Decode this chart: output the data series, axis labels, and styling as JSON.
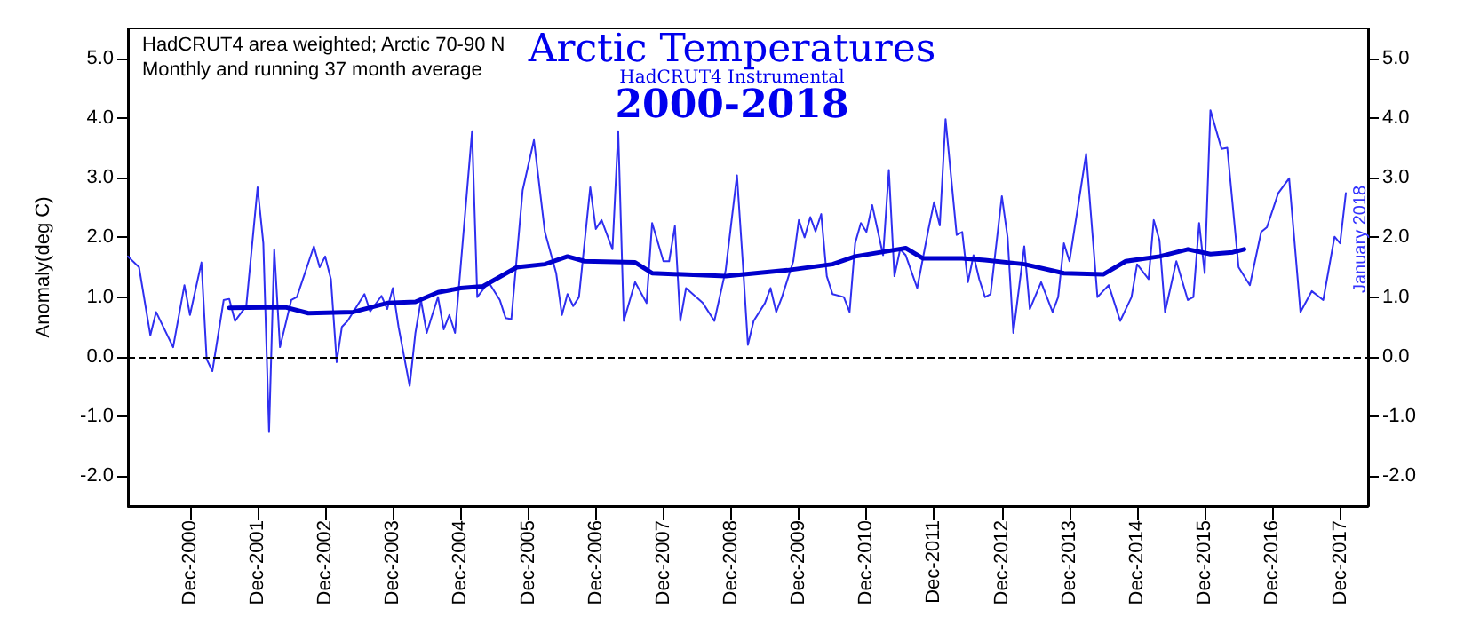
{
  "chart_data": {
    "type": "line",
    "title": "Arctic Temperatures",
    "subtitle": "HadCRUT4 Instrumental",
    "ylabel": "Anomaly(deg C)",
    "annotations": [
      "2000-2018",
      "HadCRUT4 area weighted; Arctic 70-90 N",
      "Monthly and running 37 month average",
      "January 2018"
    ],
    "series": [
      {
        "color": "#2f2ff0",
        "x": [
          "2000-01",
          "2000-03",
          "2000-05",
          "2000-06",
          "2000-09",
          "2000-11",
          "2000-12",
          "2001-02",
          "2001-03",
          "2001-04",
          "2001-06",
          "2001-07",
          "2001-08",
          "2001-10",
          "2001-12",
          "2002-01",
          "2002-02",
          "2002-03",
          "2002-04",
          "2002-06",
          "2002-07",
          "2002-10",
          "2002-11",
          "2002-12",
          "2003-01",
          "2003-02",
          "2003-03",
          "2003-04",
          "2003-07",
          "2003-08",
          "2003-10",
          "2003-11",
          "2003-12",
          "2004-01",
          "2004-03",
          "2004-04",
          "2004-05",
          "2004-06",
          "2004-07",
          "2004-08",
          "2004-09",
          "2004-10",
          "2004-11",
          "2005-02",
          "2005-03",
          "2005-05",
          "2005-07",
          "2005-08",
          "2005-09",
          "2005-11",
          "2006-01",
          "2006-03",
          "2006-05",
          "2006-06",
          "2006-07",
          "2006-08",
          "2006-09",
          "2006-11",
          "2006-12",
          "2007-01",
          "2007-03",
          "2007-04",
          "2007-05",
          "2007-07",
          "2007-09",
          "2007-10",
          "2007-12",
          "2008-01",
          "2008-02",
          "2008-03",
          "2008-04",
          "2008-07",
          "2008-09",
          "2008-11",
          "2009-01",
          "2009-02",
          "2009-03",
          "2009-04",
          "2009-06",
          "2009-07",
          "2009-08",
          "2009-09",
          "2009-11",
          "2009-12",
          "2010-01",
          "2010-02",
          "2010-03",
          "2010-04",
          "2010-05",
          "2010-06",
          "2010-08",
          "2010-09",
          "2010-10",
          "2010-11",
          "2010-12",
          "2011-01",
          "2011-03",
          "2011-04",
          "2011-05",
          "2011-06",
          "2011-07",
          "2011-09",
          "2011-11",
          "2011-12",
          "2012-01",
          "2012-02",
          "2012-04",
          "2012-05",
          "2012-06",
          "2012-07",
          "2012-08",
          "2012-09",
          "2012-10",
          "2012-12",
          "2013-01",
          "2013-02",
          "2013-04",
          "2013-05",
          "2013-07",
          "2013-09",
          "2013-10",
          "2013-11",
          "2013-12",
          "2014-03",
          "2014-05",
          "2014-07",
          "2014-09",
          "2014-11",
          "2014-12",
          "2015-02",
          "2015-03",
          "2015-04",
          "2015-05",
          "2015-07",
          "2015-09",
          "2015-10",
          "2015-11",
          "2015-12",
          "2016-01",
          "2016-03",
          "2016-04",
          "2016-06",
          "2016-07",
          "2016-08",
          "2016-10",
          "2016-11",
          "2017-01",
          "2017-03",
          "2017-05",
          "2017-07",
          "2017-09",
          "2017-11",
          "2017-12",
          "2018-01"
        ],
        "values": [
          1.68,
          1.5,
          0.36,
          0.75,
          0.16,
          1.2,
          0.7,
          1.58,
          -0.04,
          -0.24,
          0.95,
          0.97,
          0.6,
          0.85,
          2.84,
          1.9,
          -1.26,
          1.8,
          0.16,
          0.95,
          1.0,
          1.85,
          1.5,
          1.68,
          1.3,
          -0.09,
          0.5,
          0.6,
          1.05,
          0.76,
          1.02,
          0.8,
          1.15,
          0.5,
          -0.49,
          0.4,
          0.95,
          0.4,
          0.7,
          1.0,
          0.46,
          0.7,
          0.4,
          3.78,
          1.0,
          1.25,
          0.95,
          0.65,
          0.63,
          2.79,
          3.63,
          2.09,
          1.4,
          0.7,
          1.05,
          0.85,
          1.0,
          2.84,
          2.14,
          2.29,
          1.8,
          3.78,
          0.6,
          1.25,
          0.9,
          2.24,
          1.6,
          1.6,
          2.19,
          0.6,
          1.15,
          0.9,
          0.6,
          1.45,
          3.04,
          1.6,
          0.2,
          0.6,
          0.9,
          1.15,
          0.75,
          1.0,
          1.6,
          2.29,
          2.0,
          2.34,
          2.1,
          2.39,
          1.35,
          1.05,
          1.0,
          0.75,
          1.9,
          2.24,
          2.09,
          2.54,
          1.7,
          3.13,
          1.35,
          1.8,
          1.7,
          1.15,
          2.14,
          2.59,
          2.2,
          3.98,
          2.04,
          2.09,
          1.25,
          1.7,
          1.3,
          1.0,
          1.05,
          2.69,
          2.0,
          0.4,
          1.85,
          0.8,
          1.25,
          0.75,
          1.0,
          1.9,
          1.6,
          3.4,
          1.0,
          1.2,
          0.6,
          1.0,
          1.55,
          1.3,
          2.29,
          1.95,
          0.75,
          1.6,
          0.95,
          1.0,
          2.24,
          1.4,
          4.13,
          3.48,
          3.5,
          1.5,
          1.35,
          1.2,
          2.09,
          2.17,
          2.74,
          2.99,
          0.75,
          1.1,
          0.95,
          2.01,
          1.9,
          2.74
        ]
      },
      {
        "color": "#0000cc",
        "x": [
          "2001-07",
          "2002-05",
          "2002-09",
          "2003-05",
          "2003-11",
          "2004-04",
          "2004-08",
          "2004-12",
          "2005-04",
          "2005-10",
          "2006-03",
          "2006-07",
          "2006-10",
          "2007-07",
          "2007-10",
          "2008-11",
          "2009-10",
          "2010-06",
          "2010-10",
          "2011-07",
          "2011-10",
          "2012-05",
          "2012-09",
          "2013-04",
          "2013-11",
          "2014-06",
          "2014-10",
          "2015-04",
          "2015-09",
          "2016-01",
          "2016-05",
          "2016-07"
        ],
        "values": [
          0.82,
          0.83,
          0.73,
          0.75,
          0.9,
          0.92,
          1.08,
          1.15,
          1.18,
          1.5,
          1.55,
          1.68,
          1.6,
          1.58,
          1.4,
          1.35,
          1.45,
          1.55,
          1.68,
          1.82,
          1.65,
          1.65,
          1.62,
          1.55,
          1.4,
          1.38,
          1.6,
          1.68,
          1.8,
          1.72,
          1.75,
          1.8
        ]
      }
    ],
    "xlim": [
      "2000-01",
      "2018-05"
    ],
    "xticks": [
      {
        "value": "2000-12",
        "label": "Dec-2000"
      },
      {
        "value": "2001-12",
        "label": "Dec-2001"
      },
      {
        "value": "2002-12",
        "label": "Dec-2002"
      },
      {
        "value": "2003-12",
        "label": "Dec-2003"
      },
      {
        "value": "2004-12",
        "label": "Dec-2004"
      },
      {
        "value": "2005-12",
        "label": "Dec-2005"
      },
      {
        "value": "2006-12",
        "label": "Dec-2006"
      },
      {
        "value": "2007-12",
        "label": "Dec-2007"
      },
      {
        "value": "2008-12",
        "label": "Dec-2008"
      },
      {
        "value": "2009-12",
        "label": "Dec-2009"
      },
      {
        "value": "2010-12",
        "label": "Dec-2010"
      },
      {
        "value": "2011-12",
        "label": "Dec-2011"
      },
      {
        "value": "2012-12",
        "label": "Dec-2012"
      },
      {
        "value": "2013-12",
        "label": "Dec-2013"
      },
      {
        "value": "2014-12",
        "label": "Dec-2014"
      },
      {
        "value": "2015-12",
        "label": "Dec-2015"
      },
      {
        "value": "2016-12",
        "label": "Dec-2016"
      },
      {
        "value": "2017-12",
        "label": "Dec-2017"
      }
    ],
    "ylim": [
      -2.5,
      5.5
    ],
    "yticks": [
      {
        "value": -2,
        "label": "-2.0"
      },
      {
        "value": -1,
        "label": "-1.0"
      },
      {
        "value": 0,
        "label": "0.0"
      },
      {
        "value": 1,
        "label": "1.0"
      },
      {
        "value": 2,
        "label": "2.0"
      },
      {
        "value": 3,
        "label": "3.0"
      },
      {
        "value": 4,
        "label": "4.0"
      },
      {
        "value": 5,
        "label": "5.0"
      }
    ],
    "y2lim": [
      -2.5,
      5.5
    ],
    "y2ticks": [
      {
        "value": -2,
        "label": "-2.0"
      },
      {
        "value": -1,
        "label": "-1.0"
      },
      {
        "value": 0,
        "label": "0.0"
      },
      {
        "value": 1,
        "label": "1.0"
      },
      {
        "value": 2,
        "label": "2.0"
      },
      {
        "value": 3,
        "label": "3.0"
      },
      {
        "value": 4,
        "label": "4.0"
      },
      {
        "value": 5,
        "label": "5.0"
      }
    ],
    "ref_lines": [
      {
        "axis": "y",
        "value": 0,
        "color": "#000000",
        "line_style": "dashed"
      }
    ],
    "grid": false,
    "marker": "none"
  }
}
